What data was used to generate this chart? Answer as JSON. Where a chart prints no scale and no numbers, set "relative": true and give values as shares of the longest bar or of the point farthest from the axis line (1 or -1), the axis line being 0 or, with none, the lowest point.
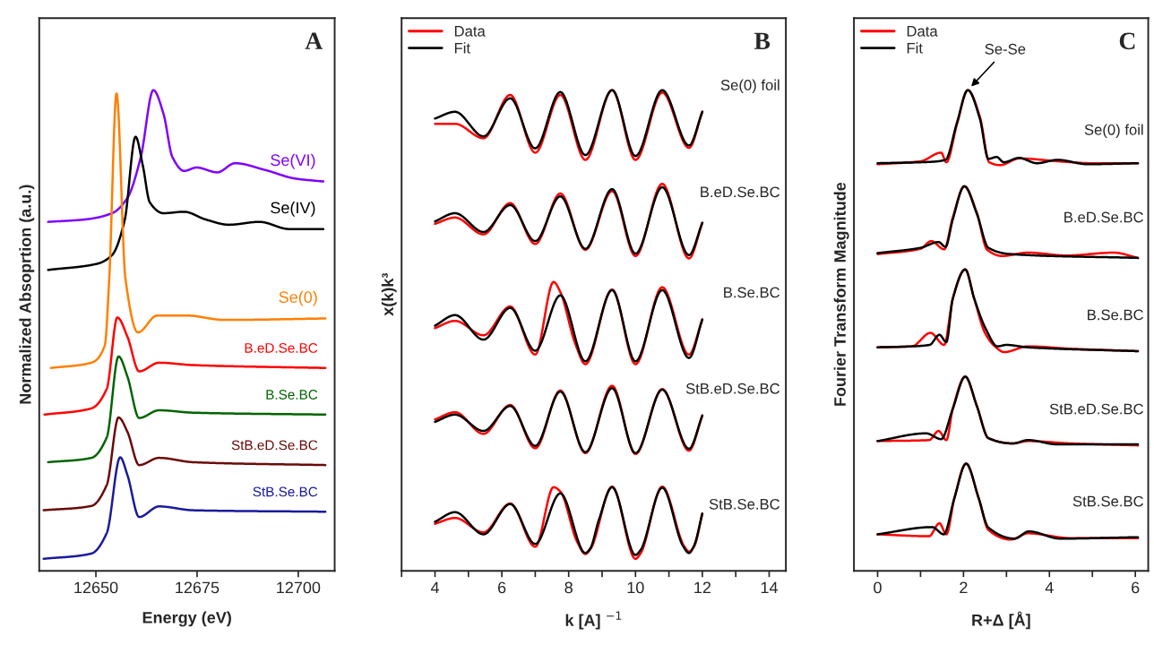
{
  "chart_data": [
    {
      "type": "line",
      "title": "A",
      "xlabel": "Energy (eV)",
      "ylabel": "Normalized Absoprtion (a.u.)",
      "relative": true,
      "xlim": [
        12636,
        12709
      ],
      "xticks": [
        12650,
        12675,
        12700
      ],
      "legend": false,
      "series": [
        {
          "name": "Se(VI)",
          "color": "#7f00ff",
          "x": [
            12638.2,
            12647.3,
            12654,
            12657.8,
            12661.1,
            12664.2,
            12666.7,
            12668.9,
            12671.8,
            12674.9,
            12680,
            12684.4,
            12691.8,
            12699.3,
            12706.2
          ],
          "values": [
            0.726,
            0.731,
            0.744,
            0.776,
            0.861,
            1.0,
            0.951,
            0.861,
            0.832,
            0.839,
            0.829,
            0.848,
            0.834,
            0.816,
            0.81
          ]
        },
        {
          "name": "Se(IV)",
          "color": "#000000",
          "x": [
            12638.2,
            12650.4,
            12654,
            12657.1,
            12659.8,
            12661.6,
            12663.3,
            12666.7,
            12671.8,
            12677.1,
            12682.9,
            12690.4,
            12697.8,
            12706.2
          ],
          "values": [
            0.626,
            0.639,
            0.657,
            0.729,
            0.903,
            0.843,
            0.767,
            0.744,
            0.747,
            0.731,
            0.72,
            0.726,
            0.711,
            0.711
          ]
        },
        {
          "name": "Se(0)",
          "color": "#ff7f00",
          "x": [
            12638.9,
            12648.9,
            12652.2,
            12653.3,
            12655.1,
            12657.3,
            12660.4,
            12665.1,
            12672.7,
            12681.6,
            12706.7
          ],
          "values": [
            0.422,
            0.433,
            0.469,
            0.608,
            0.993,
            0.608,
            0.496,
            0.531,
            0.531,
            0.522,
            0.525
          ]
        },
        {
          "name": "B.eD.Se.BC",
          "color": "#ff0000",
          "x": [
            12637.3,
            12648.9,
            12652.7,
            12655.3,
            12657.8,
            12660.7,
            12665.6,
            12674,
            12706.7
          ],
          "values": [
            0.325,
            0.338,
            0.379,
            0.527,
            0.487,
            0.415,
            0.433,
            0.428,
            0.422
          ]
        },
        {
          "name": "B.Se.BC",
          "color": "#006400",
          "x": [
            12638.2,
            12648.9,
            12652.7,
            12655.6,
            12657.8,
            12660.7,
            12665.6,
            12674,
            12706.7
          ],
          "values": [
            0.226,
            0.235,
            0.278,
            0.446,
            0.404,
            0.318,
            0.334,
            0.329,
            0.325
          ]
        },
        {
          "name": "StB.eD.Se.BC",
          "color": "#6b0a0a",
          "x": [
            12637.1,
            12648.9,
            12652.7,
            12655.6,
            12657.8,
            12660.7,
            12665.6,
            12674,
            12706.7
          ],
          "values": [
            0.126,
            0.135,
            0.179,
            0.319,
            0.289,
            0.22,
            0.235,
            0.226,
            0.22
          ]
        },
        {
          "name": "StB.Se.BC",
          "color": "#1a1a9c",
          "x": [
            12637.1,
            12648.9,
            12652.7,
            12656,
            12657.8,
            12660.7,
            12665.6,
            12674,
            12706.7
          ],
          "values": [
            0.025,
            0.036,
            0.079,
            0.236,
            0.199,
            0.112,
            0.134,
            0.126,
            0.123
          ]
        }
      ]
    },
    {
      "type": "line",
      "title": "B",
      "xlabel": "k [A] $^{−1}$",
      "ylabel": "x(k)k³",
      "relative": true,
      "xlim": [
        3,
        14.5
      ],
      "xticks": [
        {
          "value": 3,
          "label": null
        },
        4,
        {
          "value": 5,
          "label": null
        },
        6,
        {
          "value": 7,
          "label": null
        },
        8,
        {
          "value": 9,
          "label": null
        },
        10,
        {
          "value": 11,
          "label": null
        },
        12,
        {
          "value": 13,
          "label": null
        },
        14
      ],
      "legend": "top left",
      "annotations": [
        "Se(0) foil",
        "B.eD.Se.BC",
        "B.Se.BC",
        "StB.eD.Se.BC",
        "StB.Se.BC"
      ],
      "series": [
        {
          "name": "Data",
          "color": "#ff0000",
          "x": [
            4,
            4.6,
            5.45,
            6.25,
            7.0,
            7.75,
            8.5,
            9.3,
            10.0,
            10.8,
            11.6,
            12
          ],
          "values": [
            0.93,
            0.93,
            0.9,
            0.99,
            0.87,
            0.99,
            0.855,
            1.0,
            0.855,
            0.995,
            0.88,
            0.955
          ]
        },
        {
          "name": "Fit",
          "color": "#000000",
          "x": [
            4,
            4.6,
            5.45,
            6.25,
            7.0,
            7.75,
            8.5,
            9.3,
            10.0,
            10.8,
            11.6,
            12
          ],
          "values": [
            0.941,
            0.955,
            0.904,
            0.983,
            0.879,
            0.996,
            0.865,
            1.0,
            0.863,
            1.0,
            0.885,
            0.955
          ]
        },
        {
          "color": "#ff0000",
          "x": [
            4,
            4.6,
            5.45,
            6.25,
            7.0,
            7.75,
            8.5,
            9.3,
            10.0,
            10.8,
            11.6,
            12
          ],
          "values": [
            0.722,
            0.735,
            0.7,
            0.765,
            0.68,
            0.785,
            0.668,
            0.79,
            0.655,
            0.805,
            0.65,
            0.724
          ]
        },
        {
          "color": "#000000",
          "x": [
            4,
            4.6,
            5.45,
            6.25,
            7.0,
            7.75,
            8.5,
            9.3,
            10.0,
            10.8,
            11.6,
            12
          ],
          "values": [
            0.727,
            0.744,
            0.705,
            0.761,
            0.686,
            0.779,
            0.67,
            0.794,
            0.66,
            0.798,
            0.657,
            0.724
          ]
        },
        {
          "color": "#ff0000",
          "x": [
            4,
            4.6,
            5.45,
            6.25,
            7.0,
            7.55,
            7.75,
            8.2,
            8.5,
            9.3,
            10.0,
            10.8,
            11.6,
            12
          ],
          "values": [
            0.505,
            0.52,
            0.49,
            0.55,
            0.45,
            0.601,
            0.58,
            0.472,
            0.43,
            0.585,
            0.43,
            0.59,
            0.45,
            0.523
          ]
        },
        {
          "color": "#000000",
          "x": [
            4,
            4.6,
            5.45,
            6.25,
            7.0,
            7.75,
            8.5,
            9.3,
            10.0,
            10.8,
            11.6,
            12
          ],
          "values": [
            0.51,
            0.532,
            0.481,
            0.547,
            0.458,
            0.573,
            0.436,
            0.584,
            0.436,
            0.584,
            0.443,
            0.523
          ]
        },
        {
          "color": "#ff0000",
          "x": [
            4,
            4.6,
            5.45,
            6.25,
            7.0,
            7.75,
            8.5,
            9.3,
            10.0,
            10.8,
            11.6,
            12
          ],
          "values": [
            0.315,
            0.33,
            0.285,
            0.345,
            0.255,
            0.375,
            0.245,
            0.385,
            0.243,
            0.378,
            0.25,
            0.323
          ]
        },
        {
          "color": "#000000",
          "x": [
            4,
            4.6,
            5.45,
            6.25,
            7.0,
            7.75,
            8.5,
            9.3,
            10.0,
            10.8,
            11.6,
            12
          ],
          "values": [
            0.31,
            0.325,
            0.291,
            0.343,
            0.26,
            0.373,
            0.247,
            0.38,
            0.245,
            0.377,
            0.254,
            0.323
          ]
        },
        {
          "color": "#ff0000",
          "x": [
            4,
            4.6,
            5.45,
            6.25,
            7.0,
            7.55,
            7.75,
            8.25,
            8.5,
            8.65,
            9.3,
            10.0,
            10.15,
            10.8,
            11.45,
            11.6,
            11.75,
            12
          ],
          "values": [
            0.098,
            0.11,
            0.08,
            0.14,
            0.05,
            0.174,
            0.165,
            0.061,
            0.035,
            0.045,
            0.175,
            0.025,
            0.036,
            0.175,
            0.052,
            0.04,
            0.05,
            0.119
          ]
        },
        {
          "color": "#000000",
          "x": [
            4,
            4.6,
            5.45,
            6.25,
            7.0,
            7.75,
            8.5,
            8.65,
            8.9,
            9.3,
            10.0,
            10.15,
            10.8,
            11.42,
            11.6,
            11.75,
            12
          ],
          "values": [
            0.102,
            0.122,
            0.076,
            0.139,
            0.056,
            0.161,
            0.037,
            0.047,
            0.105,
            0.174,
            0.033,
            0.043,
            0.173,
            0.052,
            0.037,
            0.052,
            0.119
          ]
        }
      ]
    },
    {
      "type": "line",
      "title": "C",
      "xlabel": "R+Δ [Å]",
      "ylabel": "Fourier Transform Magnitude",
      "relative": true,
      "xlim": [
        -0.55,
        6.3
      ],
      "xticks": [
        0,
        {
          "value": 1,
          "label": null
        },
        2,
        {
          "value": 3,
          "label": null
        },
        4,
        {
          "value": 5,
          "label": null
        },
        6
      ],
      "legend": "top left",
      "annotations": [
        {
          "text": "Se-Se",
          "x": 2.1,
          "y": 1.0
        },
        "Se(0) foil",
        "B.eD.Se.BC",
        "B.Se.BC",
        "StB.eD.Se.BC",
        "StB.Se.BC"
      ],
      "series": [
        {
          "name": "Data",
          "color": "#ff0000",
          "x": [
            0,
            1.0,
            1.48,
            1.6,
            1.85,
            2.1,
            2.38,
            2.6,
            2.85,
            3.3,
            4.2,
            5.0,
            6.06
          ],
          "values": [
            0.846,
            0.852,
            0.87,
            0.85,
            0.93,
            1.0,
            0.945,
            0.85,
            0.844,
            0.858,
            0.852,
            0.848,
            0.848
          ]
        },
        {
          "name": "Fit",
          "color": "#000000",
          "x": [
            0,
            1.27,
            1.58,
            1.85,
            2.1,
            2.38,
            2.58,
            2.77,
            2.94,
            3.29,
            3.71,
            4.19,
            4.88,
            6.06
          ],
          "values": [
            0.848,
            0.851,
            0.855,
            0.933,
            1.0,
            0.941,
            0.857,
            0.861,
            0.85,
            0.859,
            0.848,
            0.855,
            0.846,
            0.848
          ]
        },
        {
          "color": "#ff0000",
          "x": [
            0,
            1.0,
            1.25,
            1.55,
            1.75,
            2.02,
            2.31,
            2.55,
            2.9,
            3.5,
            4.4,
            5.5,
            6.06
          ],
          "values": [
            0.659,
            0.67,
            0.686,
            0.669,
            0.735,
            0.8,
            0.745,
            0.668,
            0.655,
            0.662,
            0.656,
            0.662,
            0.651
          ]
        },
        {
          "color": "#000000",
          "x": [
            0,
            1.0,
            1.42,
            1.58,
            1.75,
            2.02,
            2.31,
            2.58,
            3.08,
            6.06
          ],
          "values": [
            0.661,
            0.672,
            0.684,
            0.674,
            0.731,
            0.8,
            0.743,
            0.672,
            0.659,
            0.651
          ]
        },
        {
          "color": "#ff0000",
          "x": [
            0,
            0.8,
            1.23,
            1.55,
            1.75,
            2.04,
            2.25,
            2.5,
            2.73,
            2.95,
            3.5,
            4.5,
            6.06
          ],
          "values": [
            0.465,
            0.467,
            0.495,
            0.47,
            0.566,
            0.627,
            0.566,
            0.495,
            0.467,
            0.455,
            0.467,
            0.462,
            0.457
          ]
        },
        {
          "color": "#000000",
          "x": [
            0,
            0.79,
            1.21,
            1.44,
            1.6,
            1.75,
            2.04,
            2.25,
            2.52,
            2.79,
            3.0,
            3.5,
            6.06
          ],
          "values": [
            0.465,
            0.467,
            0.47,
            0.491,
            0.476,
            0.566,
            0.627,
            0.566,
            0.503,
            0.467,
            0.47,
            0.465,
            0.457
          ]
        },
        {
          "color": "#ff0000",
          "x": [
            0,
            1.2,
            1.42,
            1.6,
            1.75,
            2.04,
            2.31,
            2.58,
            3.15,
            3.5,
            4.5,
            6.06
          ],
          "values": [
            0.27,
            0.272,
            0.291,
            0.272,
            0.337,
            0.404,
            0.343,
            0.276,
            0.265,
            0.27,
            0.265,
            0.261
          ]
        },
        {
          "color": "#000000",
          "x": [
            0,
            1.13,
            1.48,
            1.75,
            2.04,
            2.31,
            2.58,
            3.15,
            3.5,
            4.19,
            6.06
          ],
          "values": [
            0.27,
            0.286,
            0.274,
            0.337,
            0.404,
            0.343,
            0.276,
            0.265,
            0.272,
            0.263,
            0.263
          ]
        },
        {
          "color": "#ff0000",
          "x": [
            0,
            1.2,
            1.44,
            1.6,
            1.79,
            2.06,
            2.35,
            2.58,
            3.1,
            3.5,
            4.5,
            6.06
          ],
          "values": [
            0.076,
            0.072,
            0.099,
            0.076,
            0.152,
            0.223,
            0.152,
            0.085,
            0.065,
            0.078,
            0.068,
            0.068
          ]
        },
        {
          "color": "#000000",
          "x": [
            0,
            1.27,
            1.54,
            1.79,
            2.06,
            2.35,
            2.58,
            3.19,
            3.52,
            4.25,
            6.06
          ],
          "values": [
            0.076,
            0.091,
            0.076,
            0.152,
            0.223,
            0.152,
            0.09,
            0.067,
            0.082,
            0.067,
            0.07
          ]
        }
      ]
    }
  ]
}
